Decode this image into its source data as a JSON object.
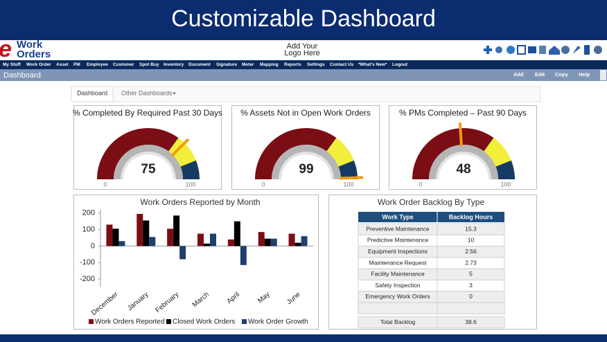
{
  "banner": {
    "title": "Customizable Dashboard"
  },
  "header": {
    "logo_e": "e",
    "logo_work": "Work",
    "logo_orders": "Orders",
    "logo_placeholder": [
      "Add Your",
      "Logo Here"
    ]
  },
  "menu": [
    "My Stuff",
    "Work Order",
    "Asset",
    "PM",
    "Employee",
    "Customer",
    "Spot Buy",
    "Inventory",
    "Document",
    "Signature",
    "Meter",
    "Mapping",
    "Reports",
    "Settings",
    "Contact Us",
    "*What's New*",
    "Logout"
  ],
  "toolbar": {
    "title": "Dashboard",
    "actions": [
      "Add",
      "Edit",
      "Copy",
      "Help"
    ]
  },
  "tabs": [
    "Dashboard",
    "Other Dashboards"
  ],
  "chart_data": [
    {
      "type": "gauge",
      "title": "% Completed By Required Past 30 Days",
      "value": 75,
      "range": [
        0,
        100
      ],
      "bands": [
        {
          "to": 70,
          "color": "#7b0d14"
        },
        {
          "to": 88,
          "color": "#f2ef3a"
        },
        {
          "to": 100,
          "color": "#173a63"
        }
      ],
      "needle_color": "#f39a12"
    },
    {
      "type": "gauge",
      "title": "% Assets Not in Open Work Orders",
      "value": 99,
      "range": [
        0,
        100
      ],
      "bands": [
        {
          "to": 70,
          "color": "#7b0d14"
        },
        {
          "to": 88,
          "color": "#f2ef3a"
        },
        {
          "to": 100,
          "color": "#173a63"
        }
      ],
      "needle_color": "#f39a12"
    },
    {
      "type": "gauge",
      "title": "% PMs Completed – Past 90 Days",
      "value": 48,
      "range": [
        0,
        100
      ],
      "bands": [
        {
          "to": 70,
          "color": "#7b0d14"
        },
        {
          "to": 88,
          "color": "#f2ef3a"
        },
        {
          "to": 100,
          "color": "#173a63"
        }
      ],
      "needle_color": "#f39a12"
    },
    {
      "type": "bar",
      "title": "Work Orders Reported by Month",
      "categories": [
        "December",
        "January",
        "February",
        "March",
        "April",
        "May",
        "June"
      ],
      "series": [
        {
          "name": "Work Orders Reported",
          "color": "#7b0d14",
          "values": [
            130,
            195,
            105,
            75,
            40,
            85,
            75
          ]
        },
        {
          "name": "Closed Work Orders",
          "color": "#000000",
          "values": [
            105,
            155,
            185,
            15,
            150,
            45,
            20
          ]
        },
        {
          "name": "Work Order Growth",
          "color": "#1f3f6e",
          "values": [
            30,
            55,
            -80,
            75,
            -115,
            45,
            60
          ]
        }
      ],
      "ylim": [
        -250,
        220
      ],
      "yticks": [
        200,
        100,
        0,
        -100,
        -200
      ],
      "grid": false
    }
  ],
  "backlog_table": {
    "title": "Work Order Backlog By Type",
    "columns": [
      "Work Type",
      "Backlog Hours"
    ],
    "rows": [
      [
        "Preventive Maintenance",
        15.3
      ],
      [
        "Predictive Maintenance",
        10
      ],
      [
        "Equipment Inspections",
        2.56
      ],
      [
        "Maintenance Request",
        2.73
      ],
      [
        "Facility Maintenance",
        5
      ],
      [
        "Safety Inspection",
        3
      ],
      [
        "Emergency Work Orders",
        0
      ]
    ],
    "total": [
      "Total Backlog",
      38.6
    ]
  }
}
